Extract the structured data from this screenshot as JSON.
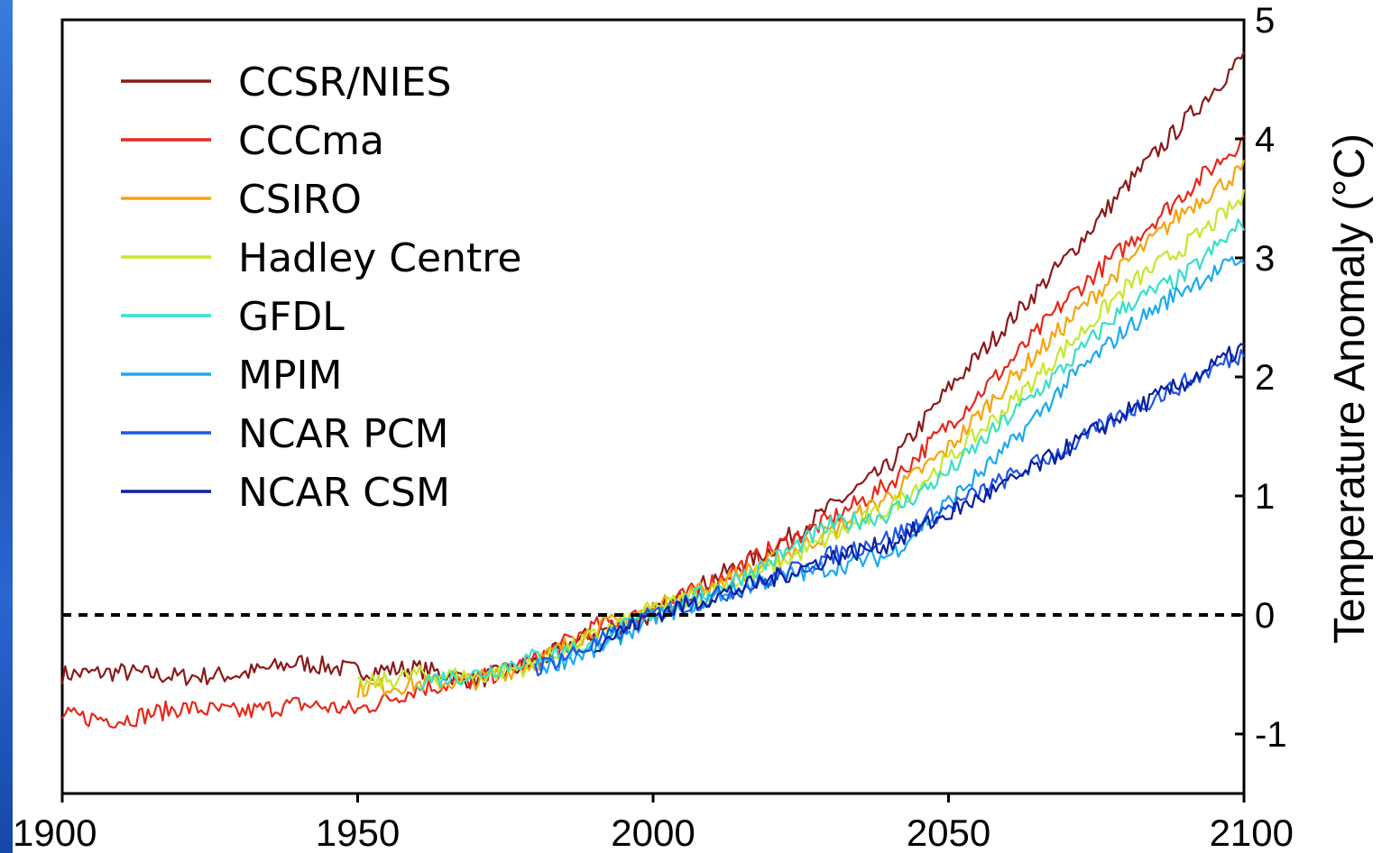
{
  "chart_data": {
    "type": "line",
    "title": "",
    "xlabel": "",
    "ylabel": "Temperature Anomaly (°C)",
    "xlim": [
      1900,
      2100
    ],
    "ylim": [
      -1.5,
      5
    ],
    "x_ticks": [
      "1900",
      "1950",
      "2000",
      "2050",
      "2100"
    ],
    "y_ticks": [
      "-1",
      "0",
      "1",
      "2",
      "3",
      "4",
      "5"
    ],
    "reference_line": {
      "y": 0,
      "style": "dashed"
    },
    "legend_position": "top-left",
    "grid": false,
    "series": [
      {
        "name": "CCSR/NIES",
        "color": "#8b1a1a",
        "x": [
          1900,
          1910,
          1920,
          1930,
          1940,
          1950,
          1960,
          1970,
          1980,
          1990,
          2000,
          2010,
          2020,
          2030,
          2040,
          2050,
          2060,
          2070,
          2080,
          2090,
          2100
        ],
        "y": [
          -0.5,
          -0.48,
          -0.52,
          -0.5,
          -0.4,
          -0.47,
          -0.45,
          -0.55,
          -0.4,
          -0.15,
          0.0,
          0.3,
          0.55,
          0.9,
          1.25,
          1.9,
          2.45,
          3.0,
          3.6,
          4.15,
          4.7
        ]
      },
      {
        "name": "CCCma",
        "color": "#e8281a",
        "x": [
          1900,
          1910,
          1920,
          1930,
          1940,
          1950,
          1960,
          1970,
          1980,
          1990,
          2000,
          2010,
          2020,
          2030,
          2040,
          2050,
          2060,
          2070,
          2080,
          2090,
          2100
        ],
        "y": [
          -0.85,
          -0.88,
          -0.78,
          -0.82,
          -0.75,
          -0.8,
          -0.62,
          -0.55,
          -0.38,
          -0.1,
          0.02,
          0.28,
          0.55,
          0.8,
          1.1,
          1.6,
          2.1,
          2.65,
          3.1,
          3.55,
          4.0
        ]
      },
      {
        "name": "CSIRO",
        "color": "#f5a40d",
        "x": [
          1950,
          1960,
          1970,
          1980,
          1990,
          2000,
          2010,
          2020,
          2030,
          2040,
          2050,
          2060,
          2070,
          2080,
          2090,
          2100
        ],
        "y": [
          -0.62,
          -0.58,
          -0.55,
          -0.4,
          -0.12,
          0.05,
          0.25,
          0.45,
          0.7,
          1.0,
          1.4,
          1.95,
          2.45,
          2.95,
          3.4,
          3.75
        ]
      },
      {
        "name": "Hadley Centre",
        "color": "#c5e82b",
        "x": [
          1950,
          1960,
          1970,
          1980,
          1990,
          2000,
          2010,
          2020,
          2030,
          2040,
          2050,
          2060,
          2070,
          2080,
          2090,
          2100
        ],
        "y": [
          -0.6,
          -0.5,
          -0.52,
          -0.42,
          -0.18,
          0.05,
          0.2,
          0.4,
          0.65,
          0.9,
          1.3,
          1.75,
          2.25,
          2.75,
          3.1,
          3.5
        ]
      },
      {
        "name": "GFDL",
        "color": "#35e0c8",
        "x": [
          1960,
          1970,
          1980,
          1990,
          2000,
          2010,
          2020,
          2030,
          2040,
          2050,
          2060,
          2070,
          2080,
          2090,
          2100
        ],
        "y": [
          -0.55,
          -0.5,
          -0.35,
          -0.25,
          0.02,
          0.2,
          0.45,
          0.75,
          0.85,
          1.2,
          1.65,
          2.1,
          2.6,
          2.85,
          3.3
        ]
      },
      {
        "name": "MPIM",
        "color": "#1aaaf0",
        "x": [
          1980,
          1990,
          2000,
          2010,
          2020,
          2030,
          2040,
          2050,
          2060,
          2070,
          2080,
          2090,
          2100
        ],
        "y": [
          -0.45,
          -0.3,
          -0.02,
          0.15,
          0.3,
          0.4,
          0.5,
          0.95,
          1.4,
          1.95,
          2.4,
          2.75,
          3.0
        ]
      },
      {
        "name": "NCAR PCM",
        "color": "#1f55e8",
        "x": [
          1980,
          1990,
          2000,
          2010,
          2020,
          2030,
          2040,
          2050,
          2060,
          2070,
          2080,
          2090,
          2100
        ],
        "y": [
          -0.45,
          -0.25,
          0.0,
          0.15,
          0.3,
          0.5,
          0.65,
          0.9,
          1.15,
          1.4,
          1.7,
          1.95,
          2.2
        ]
      },
      {
        "name": "NCAR CSM",
        "color": "#0a1fa0",
        "x": [
          1990,
          2000,
          2010,
          2020,
          2030,
          2040,
          2050,
          2060,
          2070,
          2080,
          2090,
          2100
        ],
        "y": [
          -0.25,
          0.0,
          0.15,
          0.3,
          0.48,
          0.6,
          0.85,
          1.1,
          1.4,
          1.7,
          1.95,
          2.25
        ]
      }
    ]
  }
}
